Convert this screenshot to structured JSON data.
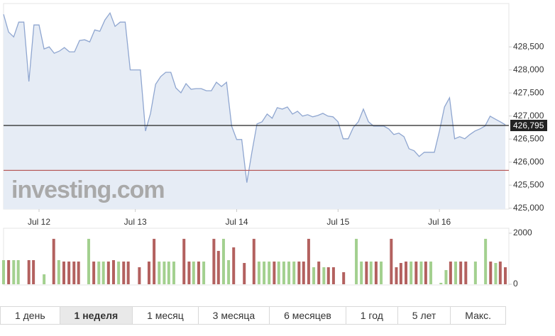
{
  "chart_data": {
    "type": "line",
    "watermark": "investing.com",
    "line_color": "#8fa6d0",
    "area_color": "#e6ecf5",
    "x": [
      0,
      1,
      2,
      3,
      4,
      5,
      6,
      7,
      8,
      9,
      10,
      11,
      12,
      13,
      14,
      15,
      16,
      17,
      18,
      19,
      20,
      21,
      22,
      23,
      24,
      25,
      26,
      27,
      28,
      29,
      30,
      31,
      32,
      33,
      34,
      35,
      36,
      37,
      38,
      39,
      40,
      41,
      42,
      43,
      44,
      45,
      46,
      47,
      48,
      49,
      50,
      51,
      52,
      53,
      54,
      55,
      56,
      57,
      58,
      59,
      60,
      61,
      62,
      63,
      64,
      65,
      66,
      67,
      68,
      69,
      70,
      71,
      72,
      73,
      74,
      75,
      76,
      77,
      78,
      79,
      80,
      81,
      82,
      83,
      84,
      85,
      86,
      87,
      88,
      89,
      90,
      91,
      92,
      93,
      94,
      95,
      96,
      97,
      98,
      99
    ],
    "values": [
      429206,
      428822,
      428715,
      429037,
      429037,
      427748,
      428976,
      428976,
      428454,
      428500,
      428362,
      428408,
      428485,
      428393,
      428393,
      428638,
      428654,
      428608,
      428868,
      428838,
      429083,
      429236,
      428945,
      429037,
      429037,
      428000,
      428000,
      428000,
      426675,
      427058,
      427687,
      427856,
      427948,
      427948,
      427610,
      427503,
      427702,
      427580,
      427595,
      427595,
      427549,
      427549,
      427733,
      427641,
      427733,
      426782,
      426490,
      426490,
      425555,
      426214,
      426828,
      426874,
      427043,
      426951,
      427181,
      427150,
      427196,
      427043,
      427104,
      426997,
      427028,
      426982,
      427012,
      427058,
      426997,
      426982,
      426874,
      426506,
      426506,
      426751,
      426874,
      427150,
      426874,
      426782,
      426782,
      426782,
      426721,
      426598,
      426629,
      426552,
      426291,
      426245,
      426122,
      426214,
      426214,
      426214,
      426675,
      427196,
      427396,
      426506,
      426552,
      426506,
      426598,
      426675,
      426721,
      426782,
      426996,
      426935,
      426874,
      426812
    ],
    "xlim": [
      0,
      99
    ],
    "xticks": [
      {
        "value": 7,
        "label": "Jul 12"
      },
      {
        "value": 26,
        "label": "Jul 13"
      },
      {
        "value": 46,
        "label": "Jul 14"
      },
      {
        "value": 66,
        "label": "Jul 15"
      },
      {
        "value": 86,
        "label": "Jul 16"
      }
    ],
    "ylim": [
      424980,
      429440
    ],
    "yticks": [
      {
        "value": 425000,
        "label": "425,000"
      },
      {
        "value": 425500,
        "label": "425,500"
      },
      {
        "value": 426000,
        "label": "426,000"
      },
      {
        "value": 426500,
        "label": "426,500"
      },
      {
        "value": 427000,
        "label": "427,000"
      },
      {
        "value": 427500,
        "label": "427,500"
      },
      {
        "value": 428000,
        "label": "428,000"
      },
      {
        "value": 428500,
        "label": "428,500"
      }
    ],
    "last": {
      "value": 426795,
      "label": "426,795"
    },
    "last_color": "#222222",
    "reference_line": 425820,
    "reference_color": "#b85c5c",
    "volume": {
      "up_color": "#a3d08f",
      "down_color": "#b3615f",
      "x": [
        0,
        1,
        2,
        2.9,
        5,
        5.9,
        8,
        9.9,
        10.9,
        11.9,
        12.9,
        13.9,
        14.8,
        16.8,
        17.8,
        18.8,
        19.7,
        20.7,
        21.7,
        22.7,
        23.7,
        24.6,
        26.8,
        28.7,
        29.7,
        30.7,
        31.7,
        32.6,
        33.6,
        35.6,
        36.6,
        37.5,
        38.5,
        39.5,
        41.5,
        42.4,
        43.4,
        44.4,
        45.4,
        47.5,
        49.4,
        50.4,
        51.4,
        52.4,
        53.4,
        54.3,
        55.3,
        56.3,
        57.3,
        58.3,
        59.2,
        60.2,
        61.2,
        62.2,
        63.2,
        64.1,
        65.1,
        67.1,
        69.6,
        70.6,
        71.6,
        72.5,
        73.5,
        74.5,
        76.5,
        77.5,
        78.4,
        79.4,
        80.4,
        81.4,
        82.4,
        83.3,
        84.3,
        86.3,
        87.3,
        88.2,
        89.2,
        90.2,
        91.2,
        93.1,
        95.1,
        96.1,
        97.1,
        98,
        99
      ],
      "values": [
        945,
        945,
        945,
        945,
        945,
        945,
        390,
        1780,
        945,
        890,
        890,
        890,
        890,
        1780,
        890,
        890,
        890,
        890,
        945,
        890,
        890,
        890,
        667,
        890,
        1780,
        890,
        890,
        890,
        890,
        1780,
        890,
        890,
        890,
        890,
        1780,
        1307,
        1780,
        945,
        1446,
        834,
        1780,
        890,
        890,
        890,
        890,
        890,
        890,
        890,
        890,
        890,
        890,
        1780,
        667,
        890,
        667,
        667,
        667,
        473,
        1780,
        890,
        890,
        890,
        890,
        890,
        1780,
        667,
        834,
        890,
        890,
        890,
        890,
        890,
        890,
        56,
        556,
        890,
        890,
        890,
        890,
        890,
        1780,
        890,
        834,
        890,
        667
      ],
      "up": [
        true,
        false,
        true,
        true,
        false,
        false,
        true,
        false,
        true,
        false,
        false,
        false,
        false,
        true,
        false,
        true,
        true,
        false,
        false,
        true,
        false,
        false,
        false,
        false,
        false,
        true,
        true,
        true,
        true,
        false,
        false,
        true,
        false,
        true,
        false,
        false,
        true,
        true,
        false,
        false,
        false,
        true,
        true,
        true,
        false,
        true,
        true,
        true,
        true,
        false,
        false,
        false,
        true,
        false,
        true,
        false,
        false,
        false,
        true,
        true,
        false,
        true,
        false,
        true,
        false,
        false,
        false,
        false,
        true,
        false,
        true,
        false,
        true,
        true,
        true,
        false,
        true,
        false,
        false,
        true,
        true,
        false,
        true,
        false,
        false
      ],
      "ylim": [
        0,
        2000
      ],
      "yticks": [
        0,
        2000
      ]
    },
    "ranges": [
      "1 день",
      "1 неделя",
      "1 месяц",
      "3 месяца",
      "6 месяцев",
      "1 год",
      "5 лет",
      "Макс."
    ],
    "selected_range": 1
  }
}
